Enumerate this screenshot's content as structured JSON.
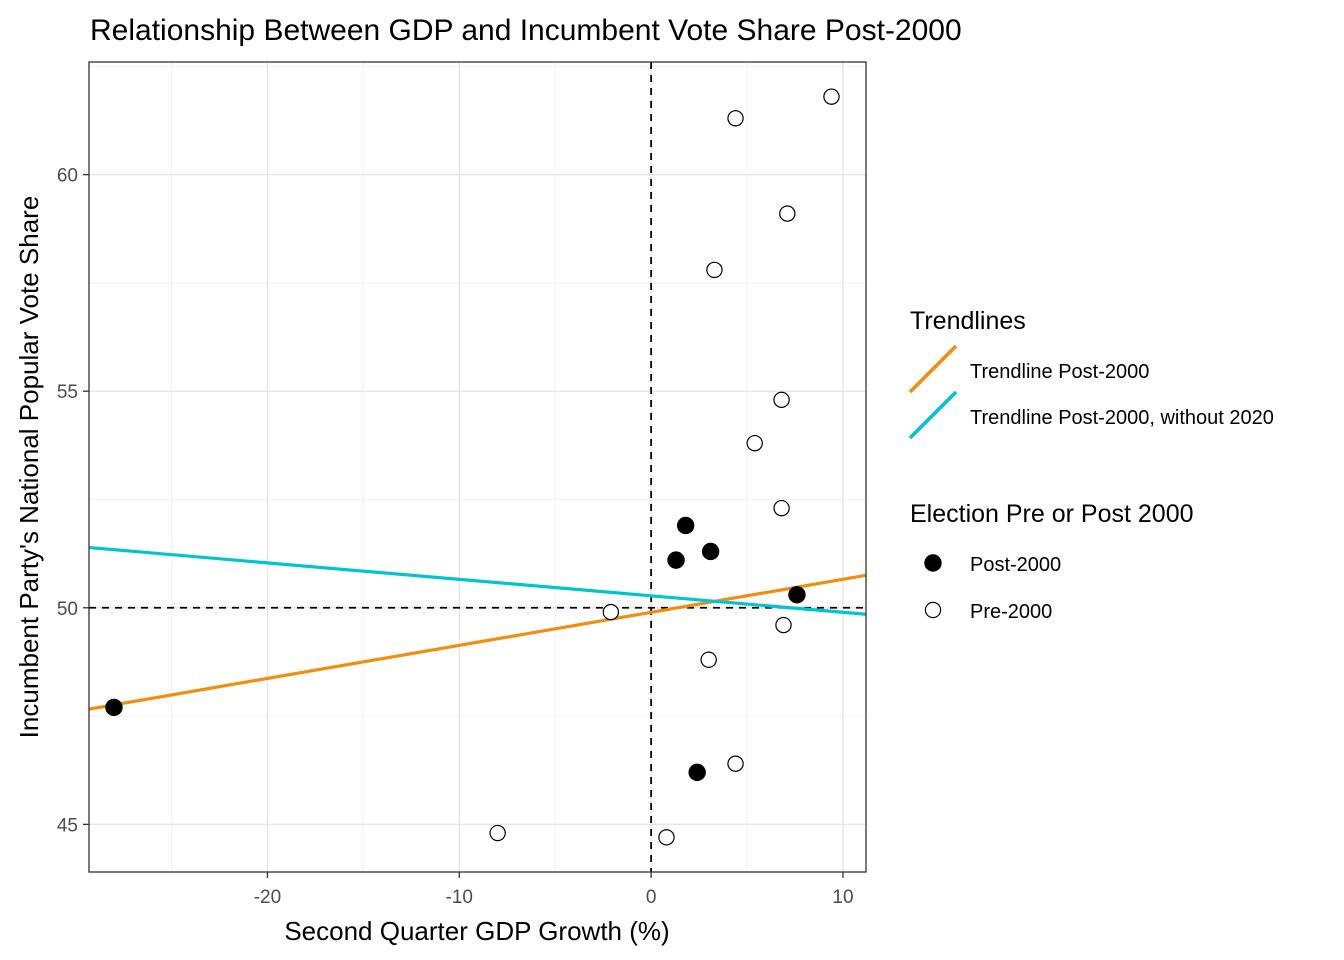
{
  "chart_data": {
    "type": "scatter",
    "title": "Relationship Between GDP and Incumbent Vote Share Post-2000",
    "xlabel": "Second Quarter GDP Growth (%)",
    "ylabel": "Incumbent Party's National Popular Vote Share",
    "xlim": [
      -29.3,
      11.2
    ],
    "ylim": [
      43.9,
      62.6
    ],
    "x_ticks": [
      -20,
      -10,
      0,
      10
    ],
    "y_ticks": [
      45,
      50,
      55,
      60
    ],
    "x_tick_labels": [
      "-20",
      "-10",
      "0",
      "10"
    ],
    "y_tick_labels": [
      "45",
      "50",
      "55",
      "60"
    ],
    "grid": true,
    "reference_lines": {
      "x": 0,
      "y": 50,
      "style": "dashed"
    },
    "series": [
      {
        "name": "Post-2000",
        "marker": "filled-circle",
        "color": "#000000",
        "points": [
          {
            "x": -28.0,
            "y": 47.7
          },
          {
            "x": 1.3,
            "y": 51.1
          },
          {
            "x": 1.8,
            "y": 51.9
          },
          {
            "x": 3.1,
            "y": 51.3
          },
          {
            "x": 2.4,
            "y": 46.2
          },
          {
            "x": 7.6,
            "y": 50.3
          }
        ]
      },
      {
        "name": "Pre-2000",
        "marker": "open-circle",
        "color": "#000000",
        "points": [
          {
            "x": 9.4,
            "y": 61.8
          },
          {
            "x": 4.4,
            "y": 61.3
          },
          {
            "x": 7.1,
            "y": 59.1
          },
          {
            "x": 3.3,
            "y": 57.8
          },
          {
            "x": 6.8,
            "y": 54.8
          },
          {
            "x": 5.4,
            "y": 53.8
          },
          {
            "x": 6.8,
            "y": 52.3
          },
          {
            "x": -2.1,
            "y": 49.9
          },
          {
            "x": 6.9,
            "y": 49.6
          },
          {
            "x": 3.0,
            "y": 48.8
          },
          {
            "x": 4.4,
            "y": 46.4
          },
          {
            "x": -8.0,
            "y": 44.8
          },
          {
            "x": 0.8,
            "y": 44.7
          }
        ]
      }
    ],
    "trendlines": [
      {
        "name": "Trendline Post-2000",
        "color": "#f28e0e",
        "x": [
          -29.3,
          11.2
        ],
        "y": [
          47.66,
          50.75
        ]
      },
      {
        "name": "Trendline Post-2000, without 2020",
        "color": "#00c5cd",
        "x": [
          -29.3,
          11.2
        ],
        "y": [
          51.39,
          49.85
        ]
      }
    ],
    "legends": [
      {
        "title": "Trendlines",
        "placement": "right",
        "entries": [
          {
            "label": "Trendline Post-2000",
            "color": "#f28e0e",
            "symbol": "line"
          },
          {
            "label": "Trendline Post-2000, without 2020",
            "color": "#00c5cd",
            "symbol": "line"
          }
        ]
      },
      {
        "title": "Election Pre or Post 2000",
        "placement": "right",
        "entries": [
          {
            "label": "Post-2000",
            "symbol": "filled-circle"
          },
          {
            "label": "Pre-2000",
            "symbol": "open-circle"
          }
        ]
      }
    ]
  }
}
